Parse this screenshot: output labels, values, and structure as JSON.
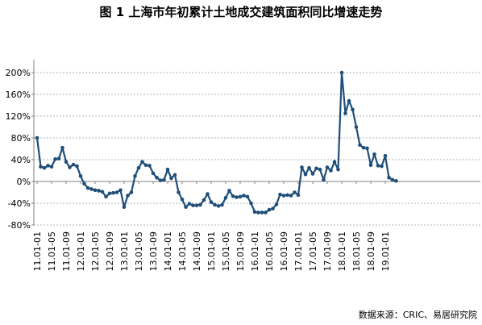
{
  "chart_data": {
    "type": "line",
    "title": "图 1 上海市年初累计土地成交建筑面积同比增速走势",
    "source": "数据来源：CRIC、易居研究院",
    "xlabel": "",
    "ylabel": "",
    "ylim": [
      -80,
      200
    ],
    "yticks": [
      "200%",
      "160%",
      "120%",
      "80%",
      "40%",
      "0%",
      "-40%",
      "-80%"
    ],
    "ytick_values": [
      200,
      160,
      120,
      80,
      40,
      0,
      -40,
      -80
    ],
    "xtick_labels": [
      "11.01-01",
      "11.01-05",
      "11.01-09",
      "12.01-01",
      "12.01-05",
      "12.01-09",
      "13.01-01",
      "13.01-05",
      "13.01-09",
      "14.01-01",
      "14.01-05",
      "14.01-09",
      "15.01-01",
      "15.01-05",
      "15.01-09",
      "16.01-01",
      "16.01-05",
      "16.01-09",
      "17.01-01",
      "17.01-05",
      "17.01-09",
      "18.01-01",
      "18.01-05",
      "18.01-09",
      "19.01-01"
    ],
    "grid": "horizontal-dashed",
    "line_color": "#1f4e79",
    "series": [
      {
        "values": [
          80,
          27,
          25,
          29,
          27,
          41,
          42,
          62,
          36,
          26,
          31,
          28,
          10,
          -4,
          -12,
          -14,
          -16,
          -17,
          -19,
          -28,
          -22,
          -21,
          -20,
          -16,
          -47,
          -26,
          -20,
          10,
          25,
          36,
          30,
          29,
          15,
          7,
          2,
          3,
          22,
          6,
          12,
          -20,
          -33,
          -47,
          -41,
          -44,
          -44,
          -43,
          -34,
          -23,
          -38,
          -43,
          -45,
          -43,
          -30,
          -17,
          -27,
          -29,
          -28,
          -26,
          -28,
          -40,
          -56,
          -57,
          -57,
          -57,
          -52,
          -50,
          -42,
          -24,
          -26,
          -25,
          -26,
          -20,
          -25,
          26,
          13,
          25,
          14,
          24,
          22,
          3,
          26,
          20,
          36,
          22,
          200,
          125,
          148,
          132,
          100,
          67,
          62,
          61,
          30,
          50,
          29,
          28,
          47,
          7,
          3,
          1
        ]
      }
    ]
  }
}
